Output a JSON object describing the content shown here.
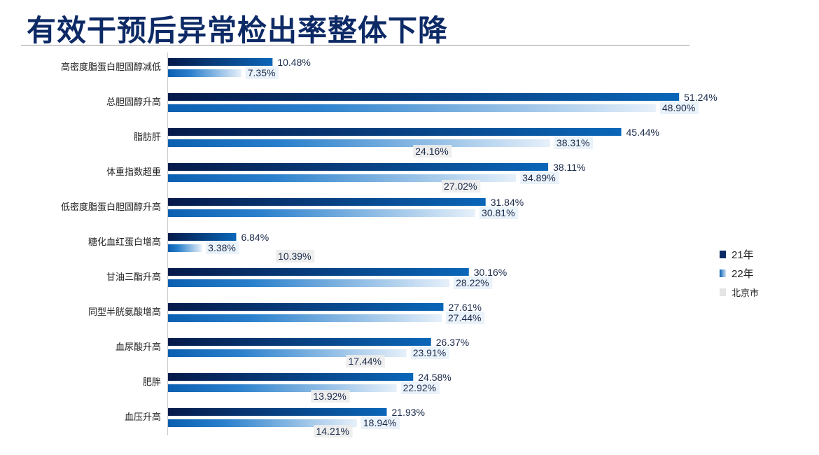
{
  "title": "有效干预后异常检出率整体下降",
  "chart_data": {
    "type": "bar",
    "orientation": "horizontal",
    "title": "有效干预后异常检出率整体下降",
    "categories": [
      "高密度脂蛋白胆固醇减低",
      "总胆固醇升高",
      "脂肪肝",
      "体重指数超重",
      "低密度脂蛋白胆固醇升高",
      "糖化血红蛋白增高",
      "甘油三酯升高",
      "同型半胱氨酸增高",
      "血尿酸升高",
      "肥胖",
      "血压升高"
    ],
    "series": [
      {
        "name": "21年",
        "color": "#0a2a66",
        "values": [
          10.48,
          51.24,
          45.44,
          38.11,
          31.84,
          6.84,
          30.16,
          27.61,
          26.37,
          24.58,
          21.93
        ],
        "labels": [
          "10.48%",
          "51.24%",
          "45.44%",
          "38.11%",
          "31.84%",
          "6.84%",
          "30.16%",
          "27.61%",
          "26.37%",
          "24.58%",
          "21.93%"
        ]
      },
      {
        "name": "22年",
        "color": "#1a6fc4",
        "values": [
          7.35,
          48.9,
          38.31,
          34.89,
          30.81,
          3.38,
          28.22,
          27.44,
          23.91,
          22.92,
          18.94
        ],
        "labels": [
          "7.35%",
          "48.90%",
          "38.31%",
          "34.89%",
          "30.81%",
          "3.38%",
          "28.22%",
          "27.44%",
          "23.91%",
          "22.92%",
          "18.94%"
        ]
      },
      {
        "name": "北京市",
        "color": "#e4e4e4",
        "values": [
          null,
          null,
          24.16,
          27.02,
          null,
          10.39,
          null,
          null,
          17.44,
          13.92,
          14.21
        ],
        "labels": [
          null,
          null,
          "24.16%",
          "27.02%",
          null,
          "10.39%",
          null,
          null,
          "17.44%",
          "13.92%",
          "14.21%"
        ]
      }
    ],
    "xlim": [
      0,
      55
    ],
    "grid": false,
    "legend": "right"
  }
}
